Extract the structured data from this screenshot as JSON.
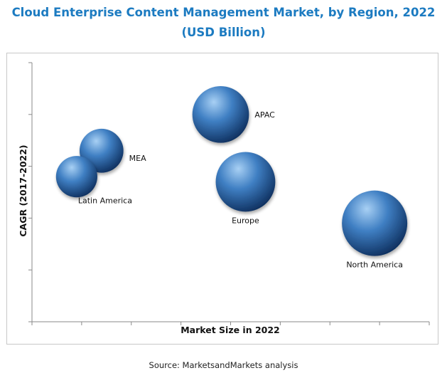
{
  "title": "Cloud Enterprise Content Management Market, by Region, 2022 (USD Billion)",
  "source": "Source: MarketsandMarkets analysis",
  "colors": {
    "title": "#1c7bc1",
    "bubble_light": "#a8d0f4",
    "bubble_mid": "#3f7fc3",
    "bubble_dark": "#0e2f5e"
  },
  "chart_data": {
    "type": "scatter",
    "subtype": "bubble",
    "xlabel": "Market Size in 2022",
    "ylabel": "CAGR (2017-2022)",
    "grid": false,
    "legend": "none",
    "xlim": [
      0,
      8
    ],
    "ylim": [
      0,
      5
    ],
    "points": [
      {
        "label": "APAC",
        "x": 3.8,
        "y": 4.0,
        "size": 0.75
      },
      {
        "label": "MEA",
        "x": 1.4,
        "y": 3.3,
        "size": 0.45
      },
      {
        "label": "Latin America",
        "x": 0.9,
        "y": 2.8,
        "size": 0.4
      },
      {
        "label": "Europe",
        "x": 4.3,
        "y": 2.7,
        "size": 0.83
      },
      {
        "label": "North America",
        "x": 6.9,
        "y": 1.9,
        "size": 1.0
      }
    ]
  }
}
